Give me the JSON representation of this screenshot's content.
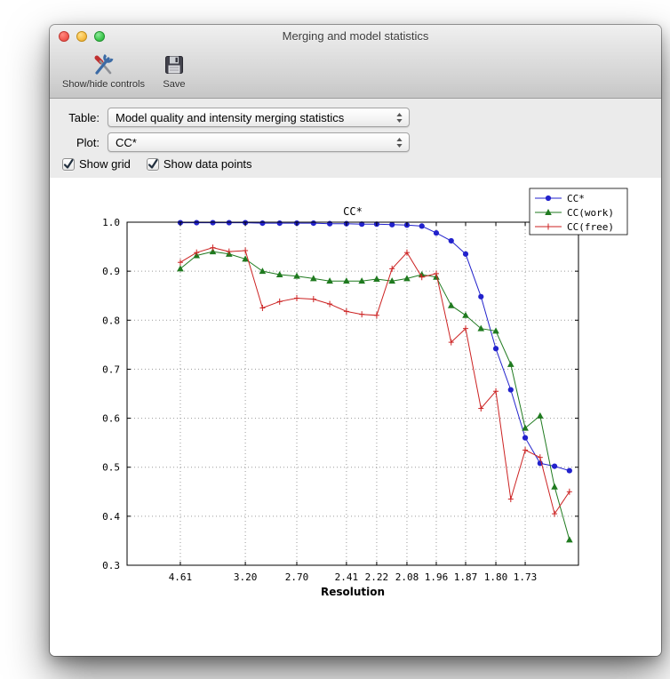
{
  "window": {
    "title": "Merging and model statistics",
    "toolbar": [
      {
        "label": "Show/hide controls",
        "icon": "tools-icon"
      },
      {
        "label": "Save",
        "icon": "save-icon"
      }
    ],
    "controls": {
      "table_label": "Table:",
      "table_value": "Model quality and intensity merging statistics",
      "plot_label": "Plot:",
      "plot_value": "CC*",
      "checkboxes": [
        {
          "label": "Show grid",
          "checked": true
        },
        {
          "label": "Show data points",
          "checked": true
        }
      ]
    }
  },
  "chart_data": {
    "type": "line",
    "title": "CC*",
    "xlabel": "Resolution",
    "ylabel": "",
    "ylim": [
      0.3,
      1.0
    ],
    "y_ticks": [
      1.0,
      0.9,
      0.8,
      0.7,
      0.6,
      0.5,
      0.4,
      0.3
    ],
    "grid": true,
    "show_data_points": true,
    "legend_position": "upper right",
    "x_ticks": [
      {
        "label": "4.61",
        "pos": 0.118
      },
      {
        "label": "3.20",
        "pos": 0.262
      },
      {
        "label": "2.70",
        "pos": 0.376
      },
      {
        "label": "2.41",
        "pos": 0.486
      },
      {
        "label": "2.22",
        "pos": 0.553
      },
      {
        "label": "2.08",
        "pos": 0.62
      },
      {
        "label": "1.96",
        "pos": 0.685
      },
      {
        "label": "1.87",
        "pos": 0.75
      },
      {
        "label": "1.80",
        "pos": 0.817
      },
      {
        "label": "1.73",
        "pos": 0.882
      }
    ],
    "x_positions": [
      0.118,
      0.154,
      0.19,
      0.226,
      0.262,
      0.3,
      0.338,
      0.376,
      0.413,
      0.449,
      0.486,
      0.52,
      0.553,
      0.587,
      0.62,
      0.653,
      0.685,
      0.718,
      0.75,
      0.784,
      0.817,
      0.85,
      0.882,
      0.915,
      0.947,
      0.98
    ],
    "series": [
      {
        "name": "CC*",
        "color": "#2222cc",
        "marker": "circle",
        "values": [
          0.999,
          0.999,
          0.999,
          0.999,
          0.999,
          0.998,
          0.998,
          0.998,
          0.998,
          0.997,
          0.997,
          0.996,
          0.996,
          0.995,
          0.994,
          0.992,
          0.978,
          0.962,
          0.935,
          0.848,
          0.742,
          0.658,
          0.56,
          0.508,
          0.502,
          0.493
        ]
      },
      {
        "name": "CC(work)",
        "color": "#1f7a1f",
        "marker": "triangle",
        "values": [
          0.905,
          0.932,
          0.94,
          0.935,
          0.925,
          0.9,
          0.893,
          0.89,
          0.885,
          0.88,
          0.88,
          0.88,
          0.884,
          0.88,
          0.885,
          0.893,
          0.888,
          0.83,
          0.81,
          0.783,
          0.778,
          0.71,
          0.58,
          0.605,
          0.46,
          0.352
        ]
      },
      {
        "name": "CC(free)",
        "color": "#cc2222",
        "marker": "plus",
        "values": [
          0.918,
          0.938,
          0.948,
          0.94,
          0.942,
          0.825,
          0.838,
          0.845,
          0.843,
          0.833,
          0.818,
          0.812,
          0.81,
          0.905,
          0.938,
          0.888,
          0.895,
          0.755,
          0.783,
          0.62,
          0.655,
          0.435,
          0.535,
          0.52,
          0.405,
          0.45
        ]
      }
    ]
  }
}
